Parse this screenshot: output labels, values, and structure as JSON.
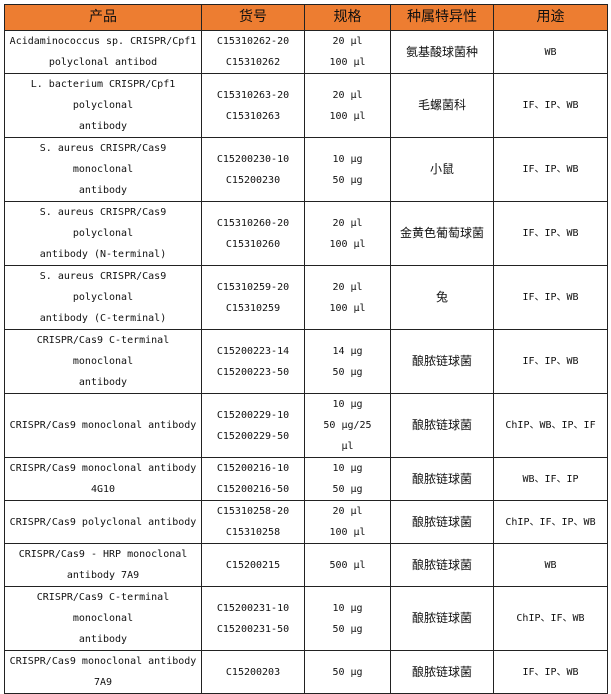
{
  "header_color": "#ed7d31",
  "headers": [
    "产品",
    "货号",
    "规格",
    "种属特异性",
    "用途"
  ],
  "rows": [
    {
      "product": [
        "Acidaminococcus sp. CRISPR/Cpf1",
        "polyclonal antibod"
      ],
      "catalog": [
        "C15310262-20",
        "C15310262"
      ],
      "size": [
        "20 μl",
        "100 μl"
      ],
      "species": "氨基酸球菌种",
      "use": "WB"
    },
    {
      "product": [
        "L. bacterium CRISPR/Cpf1",
        "polyclonal",
        "antibody"
      ],
      "catalog": [
        "C15310263-20",
        "C15310263"
      ],
      "size": [
        "20 μl",
        "100 μl"
      ],
      "species": "毛螺菌科",
      "use": "IF、IP、WB"
    },
    {
      "product": [
        "S. aureus CRISPR/Cas9",
        "monoclonal",
        "antibody"
      ],
      "catalog": [
        "C15200230-10",
        "C15200230"
      ],
      "size": [
        "10 μg",
        "50 μg"
      ],
      "species": "小鼠",
      "use": "IF、IP、WB"
    },
    {
      "product": [
        "S. aureus CRISPR/Cas9",
        "polyclonal",
        "antibody (N-terminal)"
      ],
      "catalog": [
        "C15310260-20",
        "C15310260"
      ],
      "size": [
        "20 μl",
        "100 μl"
      ],
      "species": "金黄色葡萄球菌",
      "use": "IF、IP、WB"
    },
    {
      "product": [
        "S. aureus CRISPR/Cas9",
        "polyclonal",
        "antibody (C-terminal)"
      ],
      "catalog": [
        "C15310259-20",
        "C15310259"
      ],
      "size": [
        "20 μl",
        "100 μl"
      ],
      "species": "兔",
      "use": "IF、IP、WB"
    },
    {
      "product": [
        "CRISPR/Cas9 C-terminal",
        "monoclonal",
        "antibody"
      ],
      "catalog": [
        "C15200223-14",
        "C15200223-50"
      ],
      "size": [
        "14 μg",
        "50 μg"
      ],
      "species": "酿脓链球菌",
      "use": "IF、IP、WB"
    },
    {
      "product": [
        "CRISPR/Cas9 monoclonal antibody"
      ],
      "catalog": [
        "C15200229-10",
        "C15200229-50"
      ],
      "size": [
        "10 μg",
        "50 μg/25",
        "μl"
      ],
      "species": "酿脓链球菌",
      "use": "ChIP、WB、IP、IF"
    },
    {
      "product": [
        "CRISPR/Cas9 monoclonal antibody",
        "4G10"
      ],
      "catalog": [
        "C15200216-10",
        "C15200216-50"
      ],
      "size": [
        "10 μg",
        "50 μg"
      ],
      "species": "酿脓链球菌",
      "use": "WB、IF、IP"
    },
    {
      "product": [
        "CRISPR/Cas9 polyclonal antibody"
      ],
      "catalog": [
        "C15310258-20",
        "C15310258"
      ],
      "size": [
        "20 μl",
        "100 μl"
      ],
      "species": "酿脓链球菌",
      "use": "ChIP、IF、IP、WB"
    },
    {
      "product": [
        "CRISPR/Cas9 - HRP monoclonal",
        "antibody 7A9"
      ],
      "catalog": [
        "C15200215"
      ],
      "size": [
        "500 μl"
      ],
      "species": "酿脓链球菌",
      "use": "WB"
    },
    {
      "product": [
        "CRISPR/Cas9 C-terminal",
        "monoclonal",
        "antibody"
      ],
      "catalog": [
        "C15200231-10",
        "C15200231-50"
      ],
      "size": [
        "10 μg",
        "50 μg"
      ],
      "species": "酿脓链球菌",
      "use": "ChIP、IF、WB"
    },
    {
      "product": [
        "CRISPR/Cas9 monoclonal antibody",
        "7A9"
      ],
      "catalog": [
        "C15200203"
      ],
      "size": [
        "50 μg"
      ],
      "species": "酿脓链球菌",
      "use": "IF、IP、WB"
    }
  ]
}
